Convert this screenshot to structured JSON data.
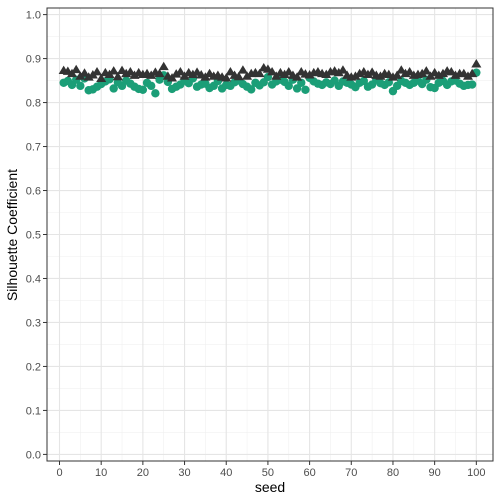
{
  "chart_data": {
    "type": "scatter",
    "xlabel": "seed",
    "ylabel": "Silhouette Coefficient",
    "xlim": [
      -3,
      104
    ],
    "ylim": [
      -0.015,
      1.015
    ],
    "xticks": [
      0,
      10,
      20,
      30,
      40,
      50,
      60,
      70,
      80,
      90,
      100
    ],
    "yticks": [
      0.0,
      0.1,
      0.2,
      0.3,
      0.4,
      0.5,
      0.6,
      0.7,
      0.8,
      0.9,
      1.0
    ],
    "grid": true,
    "legend": "none",
    "series": [
      {
        "marker": "circle",
        "color": "#1b9e77",
        "x": [
          1,
          2,
          3,
          4,
          5,
          6,
          7,
          8,
          9,
          10,
          11,
          12,
          13,
          14,
          15,
          16,
          17,
          18,
          19,
          20,
          21,
          22,
          23,
          24,
          25,
          26,
          27,
          28,
          29,
          30,
          31,
          32,
          33,
          34,
          35,
          36,
          37,
          38,
          39,
          40,
          41,
          42,
          43,
          44,
          45,
          46,
          47,
          48,
          49,
          50,
          51,
          52,
          53,
          54,
          55,
          56,
          57,
          58,
          59,
          60,
          61,
          62,
          63,
          64,
          65,
          66,
          67,
          68,
          69,
          70,
          71,
          72,
          73,
          74,
          75,
          76,
          77,
          78,
          79,
          80,
          81,
          82,
          83,
          84,
          85,
          86,
          87,
          88,
          89,
          90,
          91,
          92,
          93,
          94,
          95,
          96,
          97,
          98,
          99,
          100
        ],
        "y": [
          0.845,
          0.849,
          0.84,
          0.852,
          0.838,
          0.855,
          0.828,
          0.83,
          0.836,
          0.842,
          0.848,
          0.853,
          0.832,
          0.846,
          0.838,
          0.85,
          0.843,
          0.836,
          0.831,
          0.829,
          0.845,
          0.838,
          0.821,
          0.852,
          0.862,
          0.847,
          0.831,
          0.836,
          0.841,
          0.85,
          0.844,
          0.855,
          0.836,
          0.841,
          0.843,
          0.833,
          0.838,
          0.849,
          0.832,
          0.84,
          0.838,
          0.846,
          0.85,
          0.842,
          0.836,
          0.83,
          0.845,
          0.839,
          0.846,
          0.858,
          0.841,
          0.848,
          0.852,
          0.847,
          0.838,
          0.852,
          0.832,
          0.845,
          0.829,
          0.856,
          0.848,
          0.843,
          0.84,
          0.846,
          0.842,
          0.85,
          0.838,
          0.848,
          0.845,
          0.841,
          0.835,
          0.845,
          0.849,
          0.836,
          0.841,
          0.852,
          0.844,
          0.84,
          0.846,
          0.826,
          0.838,
          0.849,
          0.845,
          0.84,
          0.845,
          0.85,
          0.842,
          0.852,
          0.835,
          0.833,
          0.845,
          0.849,
          0.84,
          0.848,
          0.85,
          0.843,
          0.838,
          0.84,
          0.841,
          0.868
        ]
      },
      {
        "marker": "triangle",
        "color": "#333333",
        "x": [
          1,
          2,
          3,
          4,
          5,
          6,
          7,
          8,
          9,
          10,
          11,
          12,
          13,
          14,
          15,
          16,
          17,
          18,
          19,
          20,
          21,
          22,
          23,
          24,
          25,
          26,
          27,
          28,
          29,
          30,
          31,
          32,
          33,
          34,
          35,
          36,
          37,
          38,
          39,
          40,
          41,
          42,
          43,
          44,
          45,
          46,
          47,
          48,
          49,
          50,
          51,
          52,
          53,
          54,
          55,
          56,
          57,
          58,
          59,
          60,
          61,
          62,
          63,
          64,
          65,
          66,
          67,
          68,
          69,
          70,
          71,
          72,
          73,
          74,
          75,
          76,
          77,
          78,
          79,
          80,
          81,
          82,
          83,
          84,
          85,
          86,
          87,
          88,
          89,
          90,
          91,
          92,
          93,
          94,
          95,
          96,
          97,
          98,
          99,
          100
        ],
        "y": [
          0.873,
          0.871,
          0.866,
          0.875,
          0.86,
          0.867,
          0.858,
          0.863,
          0.87,
          0.855,
          0.868,
          0.864,
          0.872,
          0.859,
          0.873,
          0.866,
          0.87,
          0.862,
          0.868,
          0.864,
          0.866,
          0.862,
          0.869,
          0.866,
          0.882,
          0.86,
          0.856,
          0.865,
          0.87,
          0.86,
          0.868,
          0.864,
          0.869,
          0.863,
          0.858,
          0.866,
          0.86,
          0.862,
          0.858,
          0.856,
          0.87,
          0.862,
          0.859,
          0.874,
          0.86,
          0.866,
          0.868,
          0.866,
          0.879,
          0.876,
          0.87,
          0.86,
          0.868,
          0.864,
          0.87,
          0.862,
          0.858,
          0.87,
          0.865,
          0.863,
          0.868,
          0.87,
          0.866,
          0.864,
          0.87,
          0.872,
          0.868,
          0.874,
          0.862,
          0.858,
          0.86,
          0.866,
          0.87,
          0.864,
          0.869,
          0.862,
          0.86,
          0.866,
          0.864,
          0.858,
          0.862,
          0.874,
          0.866,
          0.87,
          0.862,
          0.864,
          0.866,
          0.872,
          0.86,
          0.868,
          0.862,
          0.866,
          0.872,
          0.87,
          0.862,
          0.866,
          0.866,
          0.86,
          0.866,
          0.888
        ]
      }
    ]
  }
}
